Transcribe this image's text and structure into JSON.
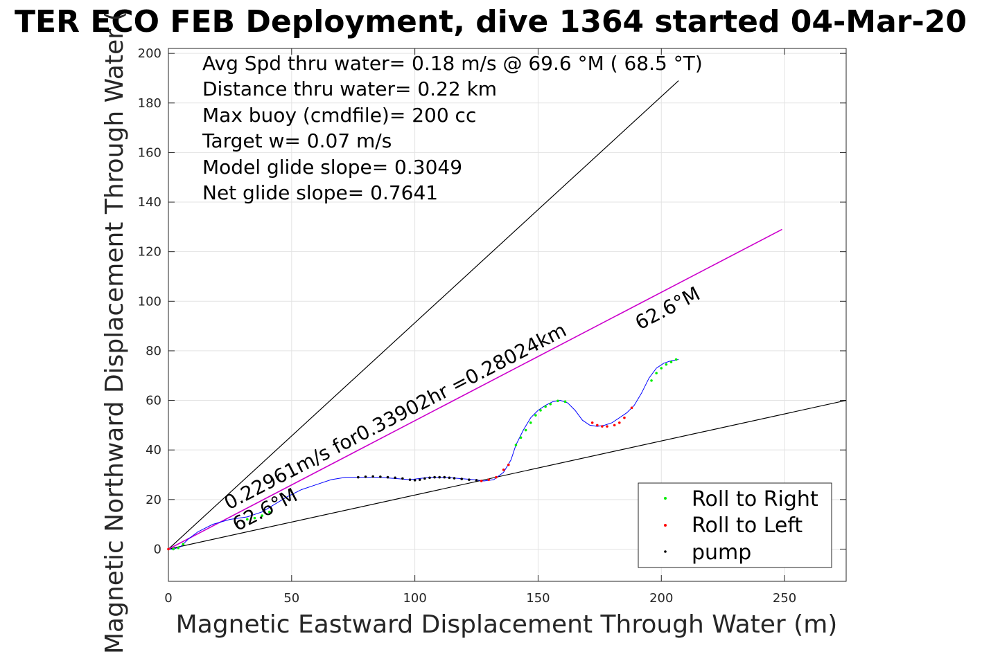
{
  "chart_data": {
    "type": "scatter",
    "title": "TER ECO FEB Deployment, dive 1364 started 04-Mar-20",
    "xlabel": "Magnetic Eastward Displacement Through Water (m)",
    "ylabel": "Magnetic Northward Displacement Through Water (",
    "xlim": [
      0,
      275
    ],
    "ylim": [
      -13,
      202
    ],
    "xticks": [
      0,
      50,
      100,
      150,
      200,
      250
    ],
    "yticks": [
      0,
      20,
      40,
      60,
      80,
      100,
      120,
      140,
      160,
      180,
      200
    ],
    "grid": true,
    "info_lines": [
      "Avg Spd thru water=  0.18 m/s @  69.6 °M ( 68.5 °T)",
      "Distance thru water=  0.22 km",
      "Max buoy (cmdfile)= 200 cc",
      "Target w= 0.07 m/s",
      "Model glide slope= 0.3049",
      "Net glide slope= 0.7641"
    ],
    "annotations": {
      "track_label": "0.22961m/s for0.33902hr =0.28024km",
      "heading_upper": "62.6°M",
      "heading_lower": "62.6°M"
    },
    "reference_lines": [
      {
        "name": "envelope-upper",
        "x": [
          0,
          207
        ],
        "y": [
          0,
          189
        ],
        "color": "#000000"
      },
      {
        "name": "envelope-lower",
        "x": [
          0,
          275
        ],
        "y": [
          0,
          60
        ],
        "color": "#000000"
      },
      {
        "name": "heading-line",
        "x": [
          0,
          249
        ],
        "y": [
          0,
          129
        ],
        "color": "#cc00cc"
      }
    ],
    "track": {
      "color": "#0000ff",
      "x": [
        0,
        2,
        5,
        8,
        12,
        18,
        25,
        32,
        38,
        43,
        48,
        54,
        60,
        66,
        72,
        78,
        85,
        92,
        98,
        102,
        106,
        112,
        118,
        124,
        128,
        132,
        136,
        139,
        141,
        144,
        147,
        150,
        153,
        156,
        159,
        162,
        165,
        168,
        171,
        174,
        177,
        180,
        183,
        186,
        189,
        192,
        195,
        198,
        201,
        204,
        207
      ],
      "y": [
        0,
        0,
        1,
        4,
        7,
        10,
        12,
        13,
        15,
        18,
        21,
        24,
        26,
        28,
        29,
        29,
        29,
        28.5,
        28,
        28.5,
        29,
        29,
        28.5,
        28,
        27.5,
        28,
        31,
        36,
        42,
        48,
        53,
        56,
        58,
        59.5,
        60,
        59,
        56,
        52,
        50,
        49.5,
        50,
        51,
        53,
        55,
        58,
        63,
        69,
        73,
        75,
        76,
        76.5
      ]
    },
    "series": [
      {
        "name": "Roll to Right",
        "color": "#00ee00",
        "marker": "dot",
        "x": [
          2,
          4,
          6,
          32,
          35,
          38,
          41,
          141,
          143,
          145,
          147,
          149,
          151,
          153,
          155,
          158,
          161,
          196,
          198,
          200,
          202,
          204,
          206
        ],
        "y": [
          0,
          0.5,
          2,
          12,
          12.5,
          13.5,
          15,
          42,
          45,
          48,
          51,
          54,
          56,
          57.5,
          58.5,
          59.8,
          59.5,
          68,
          71,
          73,
          74.5,
          75.5,
          76.5
        ]
      },
      {
        "name": "Roll to Left",
        "color": "#ff0000",
        "marker": "dot",
        "x": [
          0,
          127,
          130,
          133,
          136,
          138,
          172,
          174,
          176,
          178,
          181,
          183,
          185,
          188
        ],
        "y": [
          0,
          27.5,
          28,
          29,
          32,
          34,
          51,
          50,
          49.5,
          49.5,
          50,
          51,
          53,
          57
        ]
      },
      {
        "name": "pump",
        "color": "#000000",
        "marker": "dot",
        "x": [
          77,
          80,
          83,
          86,
          89,
          92,
          95,
          98,
          100,
          102,
          104,
          106,
          108,
          110,
          112,
          114,
          116,
          119,
          122,
          125
        ],
        "y": [
          29,
          29.2,
          29.3,
          29.2,
          29,
          28.8,
          28.5,
          28,
          27.8,
          28,
          28.5,
          28.8,
          29,
          29,
          29,
          28.8,
          28.6,
          28.3,
          28,
          27.8
        ]
      }
    ],
    "legend": {
      "placement": "bottom-right",
      "entries": [
        "Roll to Right",
        "Roll to Left",
        "pump"
      ]
    }
  }
}
